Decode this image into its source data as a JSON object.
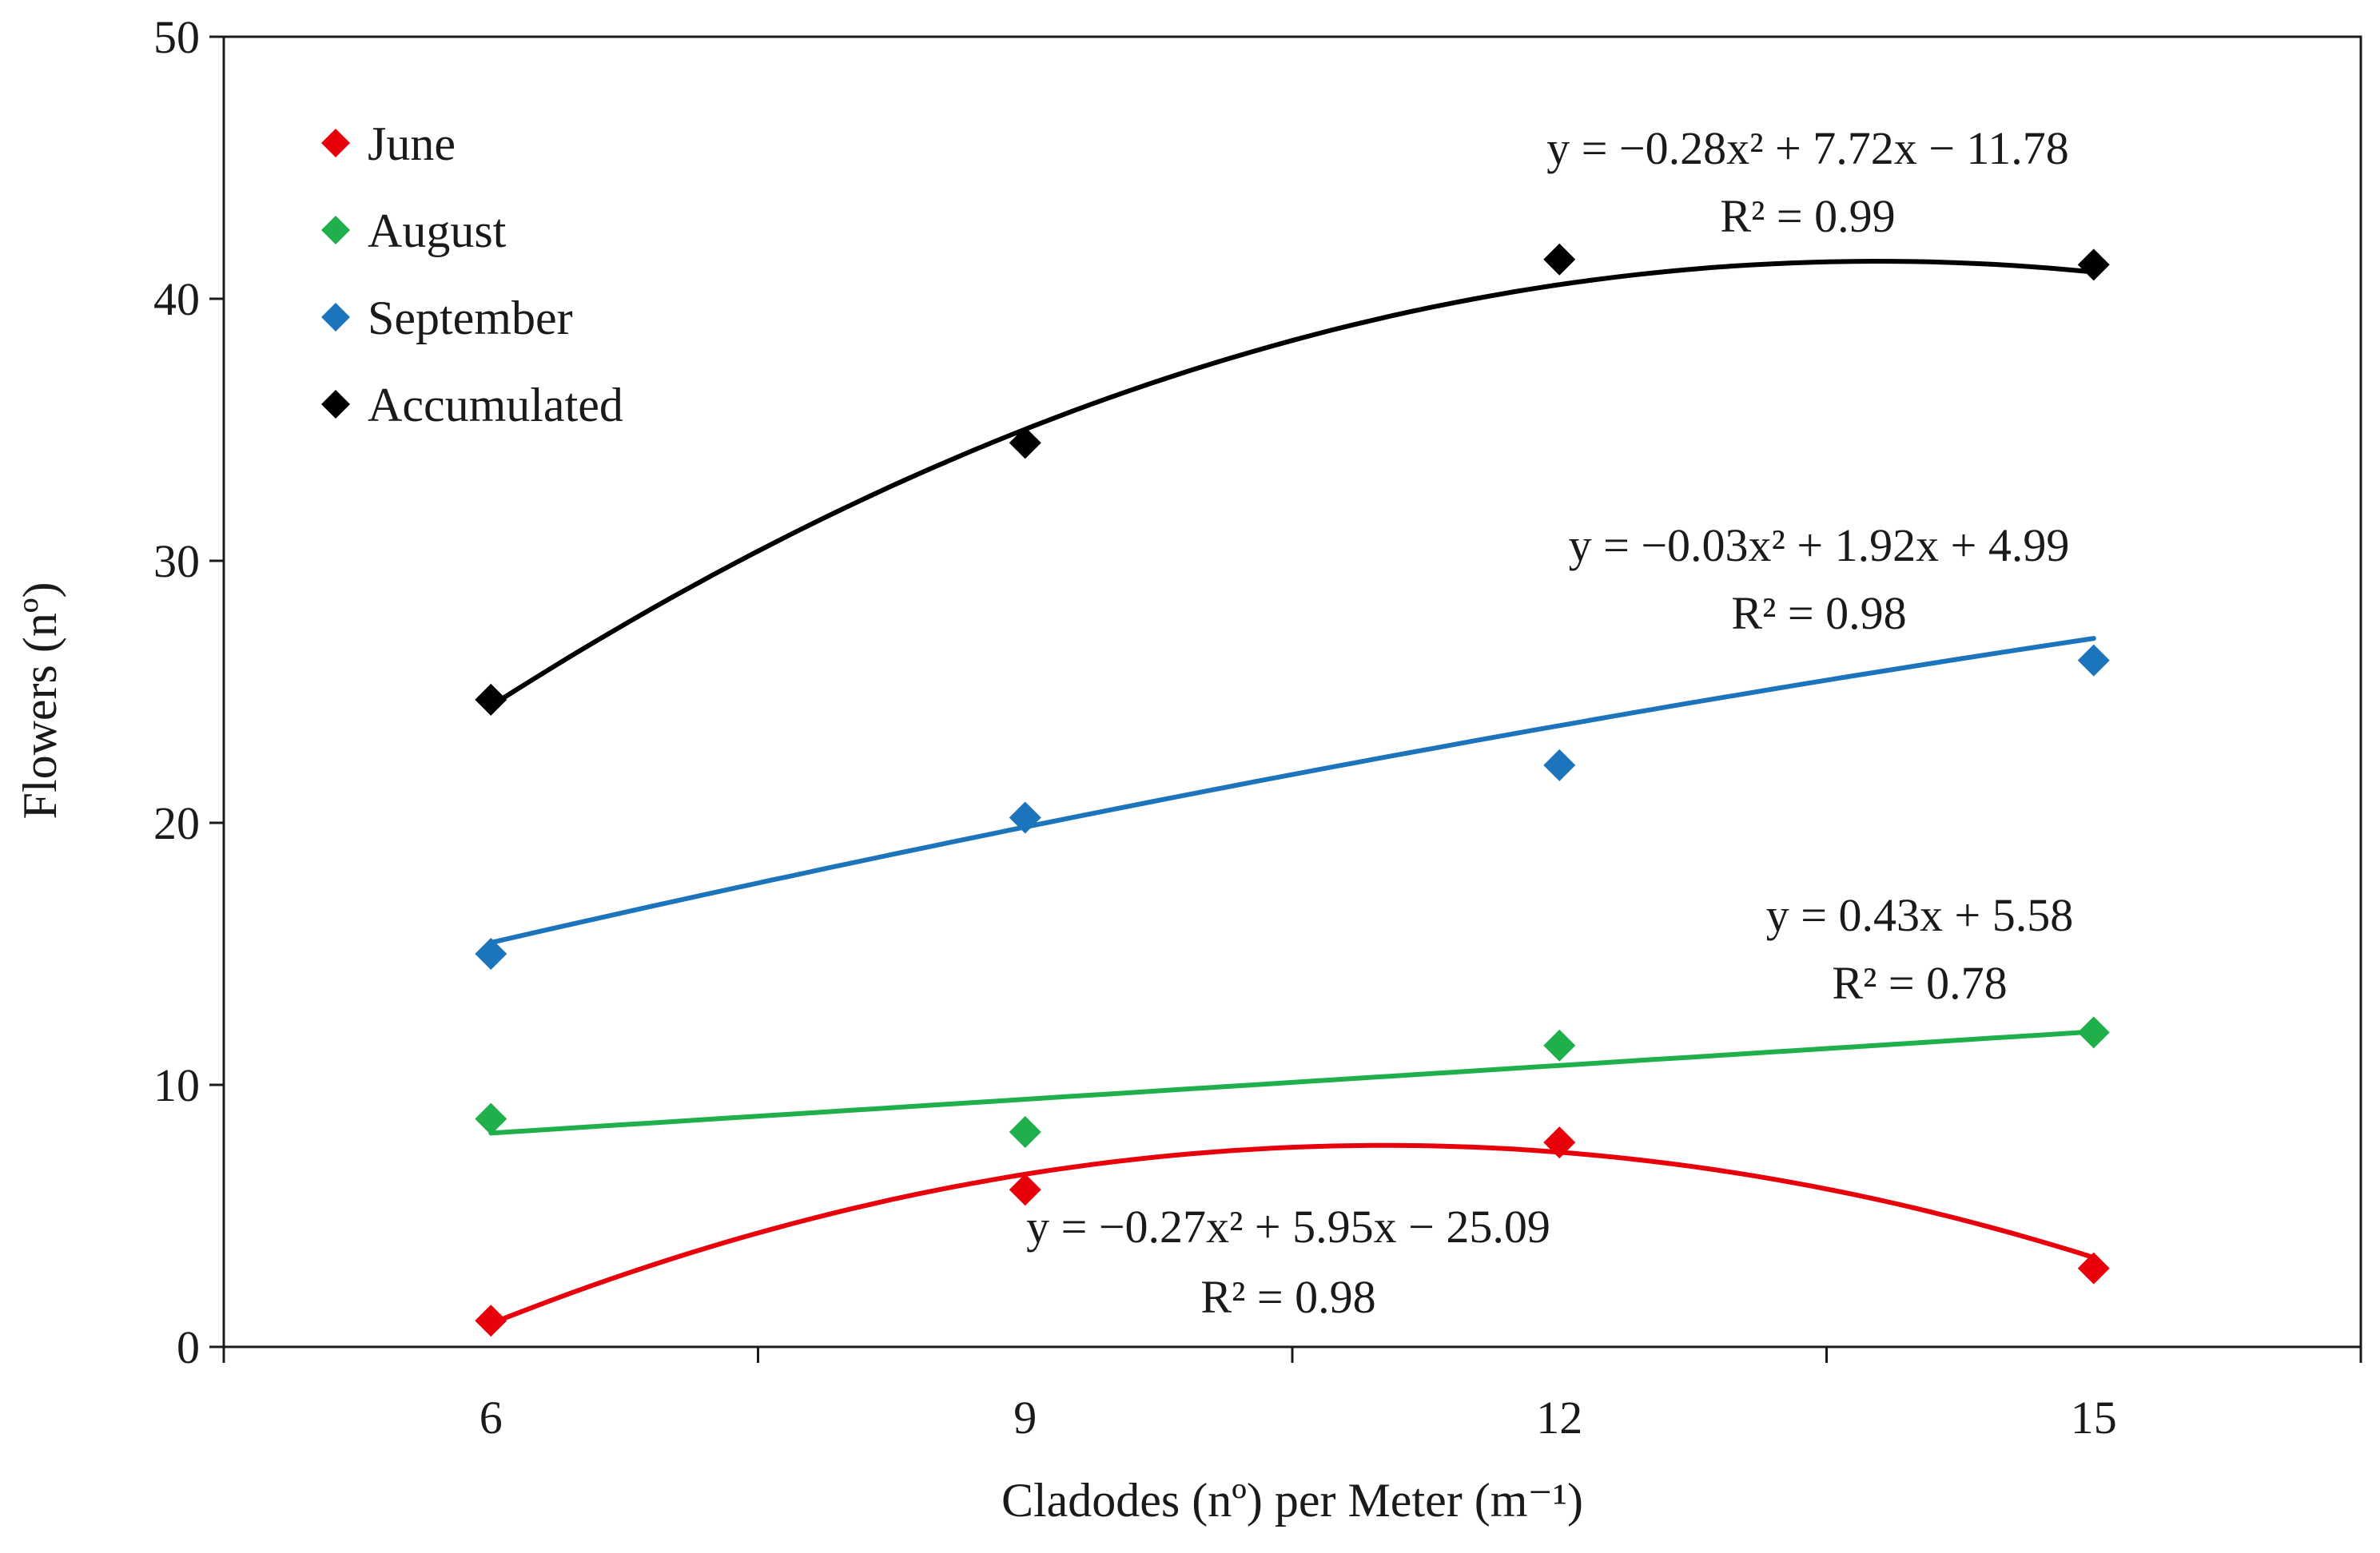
{
  "chart_data": {
    "type": "scatter",
    "title": "",
    "xlabel": "Cladodes (nº) per Meter (m⁻¹)",
    "ylabel": "Flowers (nº)",
    "xlim": [
      4.5,
      16.5
    ],
    "ylim": [
      0,
      50
    ],
    "x_ticks": [
      6,
      9,
      12,
      15
    ],
    "x_tick_labels": [
      "6",
      "9",
      "12",
      "15"
    ],
    "y_ticks": [
      0,
      10,
      20,
      30,
      40,
      50
    ],
    "y_tick_labels": [
      "0",
      "10",
      "20",
      "30",
      "40",
      "50"
    ],
    "x_minor_ticks": [
      4.5,
      7.5,
      10.5,
      13.5,
      16.5
    ],
    "grid": false,
    "legend_position": "top-left",
    "marker": "diamond",
    "series": [
      {
        "name": "June",
        "color": "#e8000b",
        "x": [
          6,
          9,
          12,
          15
        ],
        "values": [
          1.0,
          6.0,
          7.8,
          3.0
        ],
        "trend": {
          "kind": "quadratic",
          "coefficients": [
            -0.27,
            5.95,
            -25.09
          ]
        },
        "equation": "y = −0.27x² + 5.95x − 25.09",
        "r2": "R² = 0.98"
      },
      {
        "name": "August",
        "color": "#1fb04b",
        "x": [
          6,
          9,
          12,
          15
        ],
        "values": [
          8.7,
          8.2,
          11.5,
          12.0
        ],
        "trend": {
          "kind": "linear",
          "coefficients": [
            0,
            0.43,
            5.58
          ]
        },
        "equation": "y = 0.43x + 5.58",
        "r2": "R² = 0.78"
      },
      {
        "name": "September",
        "color": "#1c75bc",
        "x": [
          6,
          9,
          12,
          15
        ],
        "values": [
          15.0,
          20.2,
          22.2,
          26.2
        ],
        "trend": {
          "kind": "quadratic",
          "coefficients": [
            -0.03,
            1.92,
            4.99
          ]
        },
        "equation": "y = −0.03x² + 1.92x + 4.99",
        "r2": "R² = 0.98"
      },
      {
        "name": "Accumulated",
        "color": "#000000",
        "x": [
          6,
          9,
          12,
          15
        ],
        "values": [
          24.7,
          34.5,
          41.5,
          41.3
        ],
        "trend": {
          "kind": "quadratic",
          "coefficients": [
            -0.28,
            7.72,
            -11.78
          ]
        },
        "equation": "y = −0.28x² + 7.72x − 11.78",
        "r2": "R² = 0.99"
      }
    ]
  }
}
